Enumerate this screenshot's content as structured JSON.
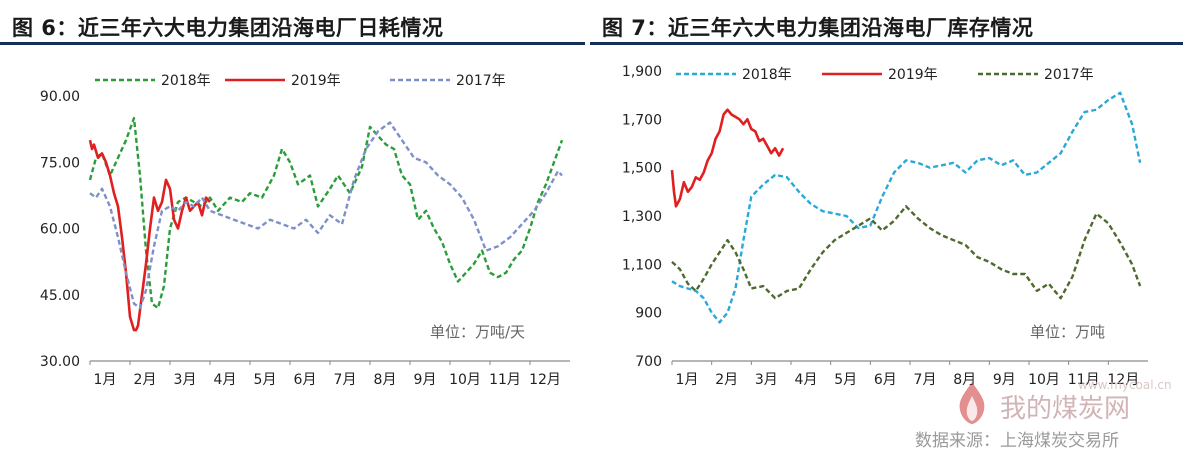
{
  "chart_data": [
    {
      "type": "line",
      "title": "图 6：近三年六大电力集团沿海电厂日耗情况",
      "unit_note": "单位：万吨/天",
      "categories": [
        "1月",
        "2月",
        "3月",
        "4月",
        "5月",
        "6月",
        "7月",
        "8月",
        "9月",
        "10月",
        "11月",
        "12月"
      ],
      "ylim": [
        30,
        90
      ],
      "yticks": [
        "30.00",
        "45.00",
        "60.00",
        "75.00",
        "90.00"
      ],
      "legend_position": "top",
      "grid": false,
      "series": [
        {
          "name": "2018年",
          "color": "#2a9d3a",
          "dash": "dashed",
          "x": [
            1,
            1.15,
            1.3,
            1.5,
            1.7,
            1.9,
            2.1,
            2.25,
            2.4,
            2.55,
            2.7,
            2.85,
            3,
            3.2,
            3.4,
            3.6,
            3.8,
            4,
            4.2,
            4.5,
            4.8,
            5,
            5.3,
            5.6,
            5.8,
            6,
            6.2,
            6.5,
            6.7,
            7,
            7.2,
            7.5,
            7.8,
            8,
            8.2,
            8.4,
            8.6,
            8.8,
            9,
            9.2,
            9.4,
            9.6,
            9.8,
            10,
            10.2,
            10.4,
            10.6,
            10.8,
            11,
            11.2,
            11.4,
            11.6,
            11.8,
            12,
            12.2,
            12.4,
            12.6,
            12.8
          ],
          "values": [
            71,
            76,
            77,
            72,
            76,
            80,
            85,
            72,
            55,
            43,
            42,
            47,
            60,
            66,
            67,
            66,
            65,
            67,
            64,
            67,
            66,
            68,
            67,
            72,
            78,
            75,
            70,
            72,
            65,
            69,
            72,
            68,
            74,
            83,
            81,
            79,
            78,
            72,
            70,
            62,
            64,
            60,
            57,
            52,
            48,
            50,
            52,
            55,
            50,
            49,
            50,
            53,
            55,
            60,
            66,
            70,
            75,
            80
          ]
        },
        {
          "name": "2019年",
          "color": "#e02020",
          "dash": "solid",
          "x": [
            1,
            1.05,
            1.1,
            1.2,
            1.3,
            1.4,
            1.5,
            1.6,
            1.7,
            1.8,
            1.9,
            2,
            2.1,
            2.15,
            2.2,
            2.3,
            2.4,
            2.5,
            2.6,
            2.7,
            2.8,
            2.9,
            3,
            3.1,
            3.2,
            3.3,
            3.4,
            3.5,
            3.6,
            3.7,
            3.8,
            3.9,
            4
          ],
          "values": [
            80,
            78,
            79,
            76,
            77,
            75,
            72,
            68,
            65,
            58,
            50,
            40,
            37,
            37,
            38,
            45,
            52,
            60,
            67,
            64,
            66,
            71,
            69,
            62,
            60,
            64,
            67,
            64,
            65,
            66,
            63,
            67,
            66
          ]
        },
        {
          "name": "2017年",
          "color": "#7f8fc8",
          "dash": "dashed",
          "x": [
            1,
            1.15,
            1.3,
            1.5,
            1.7,
            1.9,
            2.1,
            2.25,
            2.4,
            2.6,
            2.8,
            3,
            3.2,
            3.4,
            3.6,
            3.8,
            4,
            4.3,
            4.6,
            4.9,
            5.2,
            5.5,
            5.8,
            6.1,
            6.4,
            6.7,
            7,
            7.3,
            7.6,
            7.9,
            8.2,
            8.5,
            8.8,
            9.1,
            9.4,
            9.7,
            10,
            10.3,
            10.6,
            10.9,
            11.2,
            11.5,
            11.8,
            12.1,
            12.4,
            12.7,
            12.8
          ],
          "values": [
            68,
            67,
            69,
            65,
            58,
            50,
            43,
            42,
            46,
            56,
            64,
            65,
            64,
            66,
            65,
            67,
            64,
            63,
            62,
            61,
            60,
            62,
            61,
            60,
            62,
            59,
            63,
            61,
            71,
            78,
            82,
            84,
            80,
            76,
            75,
            72,
            70,
            67,
            62,
            55,
            56,
            58,
            61,
            64,
            68,
            73,
            72
          ]
        }
      ]
    },
    {
      "type": "line",
      "title": "图 7：近三年六大电力集团沿海电厂库存情况",
      "unit_note": "单位：万吨",
      "categories": [
        "1月",
        "2月",
        "3月",
        "4月",
        "5月",
        "6月",
        "7月",
        "8月",
        "9月",
        "10月",
        "11月",
        "12月"
      ],
      "ylim": [
        700,
        1900
      ],
      "yticks": [
        "700",
        "900",
        "1,100",
        "1,300",
        "1,500",
        "1,700",
        "1,900"
      ],
      "legend_position": "top",
      "grid": false,
      "series": [
        {
          "name": "2018年",
          "color": "#2aa8d8",
          "dash": "dashed",
          "x": [
            1,
            1.2,
            1.4,
            1.6,
            1.8,
            2,
            2.2,
            2.4,
            2.6,
            2.8,
            3,
            3.3,
            3.6,
            3.9,
            4.2,
            4.5,
            4.8,
            5.1,
            5.4,
            5.7,
            6,
            6.3,
            6.6,
            6.9,
            7.2,
            7.5,
            7.8,
            8.1,
            8.4,
            8.7,
            9,
            9.3,
            9.6,
            9.9,
            10.2,
            10.5,
            10.8,
            11.1,
            11.4,
            11.7,
            12,
            12.3,
            12.6,
            12.8
          ],
          "values": [
            1030,
            1010,
            1000,
            990,
            960,
            900,
            860,
            900,
            1000,
            1200,
            1380,
            1430,
            1470,
            1460,
            1400,
            1350,
            1320,
            1310,
            1300,
            1250,
            1260,
            1380,
            1480,
            1530,
            1520,
            1500,
            1510,
            1520,
            1480,
            1530,
            1540,
            1510,
            1530,
            1470,
            1480,
            1520,
            1560,
            1650,
            1730,
            1740,
            1780,
            1810,
            1680,
            1520
          ]
        },
        {
          "name": "2019年",
          "color": "#e02020",
          "dash": "solid",
          "x": [
            1,
            1.05,
            1.1,
            1.2,
            1.3,
            1.4,
            1.5,
            1.6,
            1.7,
            1.8,
            1.9,
            2,
            2.1,
            2.2,
            2.3,
            2.4,
            2.5,
            2.6,
            2.7,
            2.8,
            2.9,
            3,
            3.1,
            3.2,
            3.3,
            3.4,
            3.5,
            3.6,
            3.7,
            3.8
          ],
          "values": [
            1490,
            1400,
            1340,
            1370,
            1440,
            1400,
            1420,
            1460,
            1450,
            1480,
            1530,
            1560,
            1620,
            1650,
            1720,
            1740,
            1720,
            1710,
            1700,
            1680,
            1700,
            1660,
            1650,
            1610,
            1620,
            1590,
            1560,
            1580,
            1550,
            1580
          ]
        },
        {
          "name": "2017年",
          "color": "#4e6a2e",
          "dash": "dashed",
          "x": [
            1,
            1.2,
            1.4,
            1.6,
            1.8,
            2,
            2.2,
            2.4,
            2.6,
            2.8,
            3,
            3.3,
            3.6,
            3.9,
            4.2,
            4.5,
            4.8,
            5.1,
            5.4,
            5.7,
            6,
            6.3,
            6.6,
            6.9,
            7.2,
            7.5,
            7.8,
            8.1,
            8.4,
            8.7,
            9,
            9.3,
            9.6,
            9.9,
            10.2,
            10.5,
            10.8,
            11.1,
            11.4,
            11.7,
            12,
            12.3,
            12.6,
            12.8
          ],
          "values": [
            1110,
            1080,
            1020,
            990,
            1040,
            1100,
            1150,
            1200,
            1150,
            1080,
            1000,
            1010,
            960,
            990,
            1000,
            1080,
            1150,
            1200,
            1230,
            1260,
            1290,
            1240,
            1280,
            1340,
            1290,
            1250,
            1220,
            1200,
            1180,
            1130,
            1110,
            1080,
            1060,
            1060,
            990,
            1020,
            960,
            1050,
            1200,
            1310,
            1270,
            1190,
            1100,
            1010
          ]
        }
      ]
    }
  ],
  "watermark": {
    "site_name": "我的煤炭网",
    "site_url": "www.mycoal.cn",
    "source_note": "数据来源：上海煤炭交易所",
    "logo_color": "#cc3333"
  }
}
